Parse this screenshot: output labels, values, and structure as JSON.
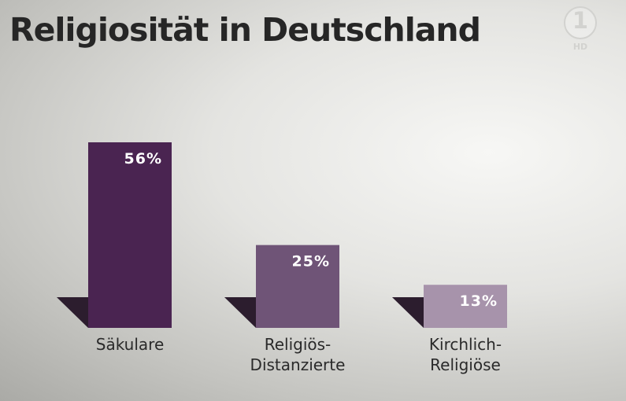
{
  "header": {
    "title": "Religiosität in Deutschland"
  },
  "logo": {
    "digit": "1",
    "hd": "HD",
    "icon": "ard-logo-icon"
  },
  "colors": {
    "bar1": "#4a2451",
    "bar2": "#6f5477",
    "bar3": "#a793ab",
    "shadow": "#2c1d2e"
  },
  "chart_data": {
    "type": "bar",
    "title": "Religiosität in Deutschland",
    "categories": [
      [
        "Säkulare"
      ],
      [
        "Religiös-",
        "Distanzierte"
      ],
      [
        "Kirchlich-",
        "Religiöse"
      ]
    ],
    "values": [
      56,
      25,
      13
    ],
    "value_labels": [
      "56%",
      "25%",
      "13%"
    ],
    "xlabel": "",
    "ylabel": "",
    "grid": false
  }
}
